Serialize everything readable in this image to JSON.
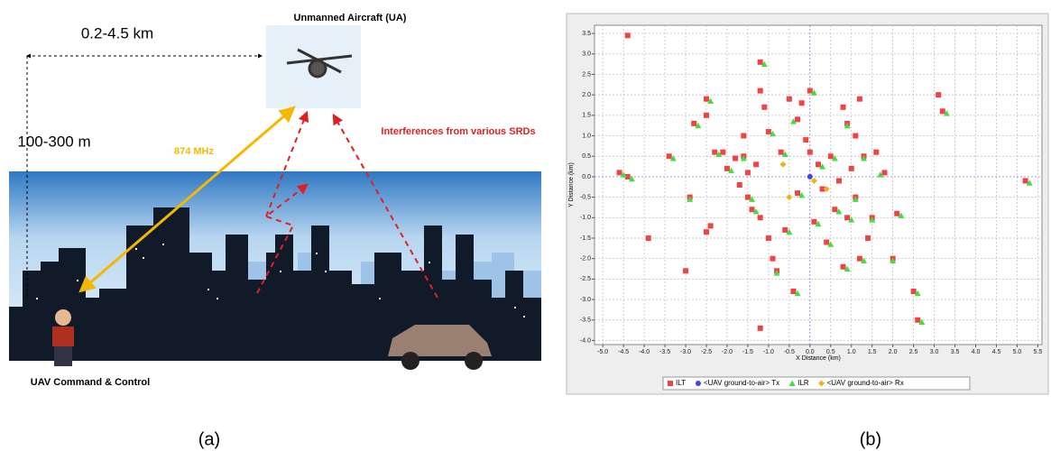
{
  "diagram": {
    "aircraft_label": "Unmanned Aircraft (UA)",
    "range_label": "0.2-4.5 km",
    "height_label": "100-300 m",
    "frequency_label": "874 MHz",
    "interference_label": "Interferences from various SRDs",
    "ground_label": "UAV Command & Control",
    "caption": "(a)"
  },
  "chart_data": {
    "type": "scatter",
    "xlabel": "X Distance (km)",
    "ylabel": "Y Distance (km)",
    "caption": "(b)",
    "xlim": [
      -5.2,
      5.6
    ],
    "ylim": [
      -4.1,
      3.7
    ],
    "xticks": [
      {
        "value": -5,
        "label": "-5.0"
      },
      -4.5,
      {
        "value": -4,
        "label": "-4.0"
      },
      -3.5,
      {
        "value": -3,
        "label": "-3.0"
      },
      -2.5,
      {
        "value": -2,
        "label": "-2.0"
      },
      -1.5,
      {
        "value": -1,
        "label": "-1.0"
      },
      -0.5,
      {
        "value": 0,
        "label": "0.0"
      },
      0.5,
      {
        "value": 1,
        "label": "1.0"
      },
      1.5,
      {
        "value": 2,
        "label": "2.0"
      },
      2.5,
      {
        "value": 3,
        "label": "3.0"
      },
      3.5,
      {
        "value": 4,
        "label": "4.0"
      },
      4.5,
      {
        "value": 5,
        "label": "5.0"
      },
      5.5
    ],
    "yticks": [
      3.5,
      {
        "value": 3,
        "label": "3.0"
      },
      2.5,
      {
        "value": 2,
        "label": "2.0"
      },
      1.5,
      {
        "value": 1,
        "label": "1.0"
      },
      0.5,
      {
        "value": 0,
        "label": "0.0"
      },
      -0.5,
      {
        "value": -1,
        "label": "-1.0"
      },
      -1.5,
      {
        "value": -2,
        "label": "-2.0"
      },
      -2.5,
      {
        "value": -3,
        "label": "-3.0"
      },
      -3.5,
      {
        "value": -4,
        "label": "-4.0"
      }
    ],
    "grid": true,
    "legend": "bottom",
    "series": [
      {
        "name": "ILT",
        "color": "#ee4444",
        "marker": "square",
        "x": [
          -4.4,
          -4.6,
          -4.4,
          -3.4,
          -3.9,
          -3.0,
          -2.9,
          -2.8,
          -2.5,
          -2.5,
          -2.4,
          -2.5,
          -2.3,
          -2.1,
          -2.0,
          -1.8,
          -1.6,
          -1.7,
          -1.5,
          -1.2,
          -1.2,
          -1.1,
          -1.0,
          -1.6,
          -1.5,
          -1.4,
          -1.2,
          -1.0,
          -0.9,
          -0.8,
          -1.2,
          -0.4,
          -0.5,
          -0.3,
          -0.2,
          0.0,
          -0.1,
          0.2,
          0.3,
          0.5,
          0.6,
          0.8,
          0.9,
          1.0,
          1.1,
          1.2,
          1.3,
          1.5,
          1.4,
          1.2,
          0.8,
          0.4,
          0.1,
          -0.3,
          0.0,
          0.7,
          2.0,
          2.1,
          1.8,
          1.6,
          3.1,
          3.2,
          2.5,
          2.6,
          5.2,
          -0.6,
          -1.3,
          0.9,
          1.1,
          -0.7
        ],
        "values": [
          3.45,
          0.1,
          0.0,
          0.5,
          -1.5,
          -2.3,
          -0.5,
          1.3,
          1.9,
          1.5,
          -1.2,
          -1.35,
          0.6,
          0.6,
          0.2,
          0.45,
          0.5,
          -0.2,
          -0.5,
          2.8,
          2.1,
          1.7,
          1.1,
          1.0,
          0.1,
          -0.8,
          -1.0,
          -1.5,
          -2.0,
          -2.3,
          -3.7,
          -2.8,
          1.9,
          1.4,
          1.8,
          2.1,
          0.9,
          0.3,
          -0.3,
          0.5,
          -0.8,
          1.7,
          1.3,
          0.2,
          -0.5,
          1.9,
          0.5,
          -1.0,
          -1.5,
          -2.0,
          -2.2,
          -1.6,
          -1.1,
          -0.4,
          0.6,
          -0.1,
          -2.0,
          -0.9,
          0.1,
          0.6,
          2.0,
          1.6,
          -2.8,
          -3.5,
          -0.1,
          -1.3,
          0.3,
          -1.0,
          1.0,
          0.6
        ]
      },
      {
        "name": "<UAV ground-to-air> Tx",
        "color": "#4444ee",
        "marker": "circle",
        "x": [
          0.0
        ],
        "values": [
          0.0
        ]
      },
      {
        "name": "ILR",
        "color": "#44dd44",
        "marker": "triangle",
        "x": [
          -4.3,
          -4.5,
          -3.3,
          -2.9,
          -2.7,
          -2.4,
          -2.2,
          -1.9,
          -1.6,
          -1.4,
          -1.1,
          -0.9,
          -1.3,
          -0.8,
          -0.3,
          -0.4,
          0.1,
          0.3,
          0.6,
          0.7,
          0.9,
          1.1,
          1.3,
          1.5,
          1.3,
          0.9,
          0.5,
          0.2,
          -0.2,
          2.0,
          2.2,
          1.7,
          3.3,
          2.6,
          2.7,
          5.3,
          -0.5,
          1.0,
          -0.6
        ],
        "values": [
          -0.05,
          0.05,
          0.45,
          -0.55,
          1.25,
          1.85,
          0.55,
          0.15,
          0.45,
          -0.55,
          2.75,
          1.05,
          -0.85,
          -2.35,
          -2.85,
          1.35,
          2.05,
          0.25,
          0.45,
          -0.85,
          1.25,
          -0.55,
          0.45,
          -1.05,
          -2.05,
          -2.25,
          -1.65,
          -1.15,
          -0.45,
          -2.05,
          -0.95,
          0.05,
          1.55,
          -2.85,
          -3.55,
          -0.15,
          -1.35,
          -1.05,
          0.55
        ]
      },
      {
        "name": "<UAV ground-to-air> Rx",
        "color": "#f0b020",
        "marker": "diamond",
        "x": [
          -0.65,
          -0.5,
          0.1,
          0.4
        ],
        "values": [
          0.3,
          -0.5,
          -0.1,
          -0.3
        ]
      }
    ]
  }
}
